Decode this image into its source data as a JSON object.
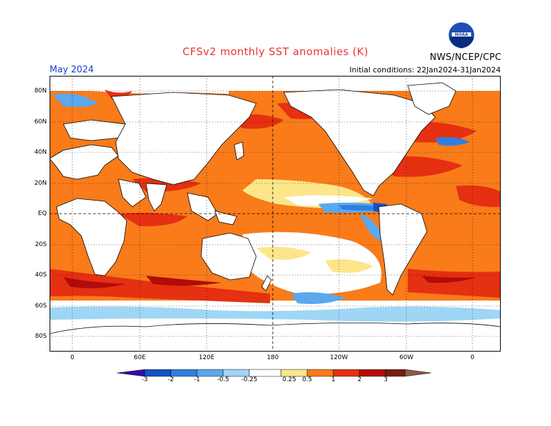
{
  "title": "CFSv2 monthly SST anomalies (K)",
  "agency": "NWS/NCEP/CPC",
  "logo_text": "NOAA",
  "month": "May 2024",
  "initial_conditions": "Initial conditions: 22Jan2024-31Jan2024",
  "lat_labels": [
    "80N",
    "60N",
    "40N",
    "20N",
    "EQ",
    "20S",
    "40S",
    "60S",
    "80S"
  ],
  "lon_labels": [
    "0",
    "60E",
    "120E",
    "180",
    "120W",
    "60W",
    "0"
  ],
  "colorbar": {
    "labels": [
      "-3",
      "-2",
      "-1",
      "-0.5",
      "-0.25",
      "0.25",
      "0.5",
      "1",
      "2",
      "3"
    ],
    "colors": [
      "#3a0aa8",
      "#1451c8",
      "#2f7ee0",
      "#5aa8ee",
      "#9fd6f5",
      "#ffffff",
      "#fde68a",
      "#f97b1a",
      "#e53011",
      "#b20b0b",
      "#7a1b12",
      "#8c5a4a"
    ]
  },
  "colors": {
    "title": "#ee3333",
    "month": "#1a3fd0",
    "land": "#ffffff",
    "warm": "#f97b1a",
    "hot": "#e53011",
    "cool": "#5aa8ee"
  }
}
